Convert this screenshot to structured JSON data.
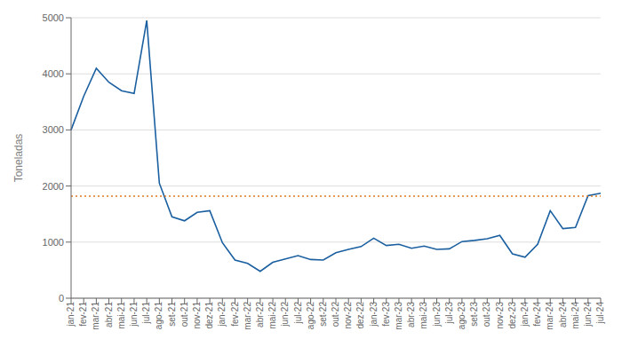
{
  "chart_data": {
    "type": "line",
    "ylabel": "Toneladas",
    "categories": [
      "jan-21",
      "fev-21",
      "mar-21",
      "abr-21",
      "mai-21",
      "jun-21",
      "jul-21",
      "ago-21",
      "set-21",
      "out-21",
      "nov-21",
      "dez-21",
      "jan-22",
      "fev-22",
      "mar-22",
      "abr-22",
      "mai-22",
      "jun-22",
      "jul-22",
      "ago-22",
      "set-22",
      "out-22",
      "nov-22",
      "dez-22",
      "jan-23",
      "fev-23",
      "mar-23",
      "abr-23",
      "mai-23",
      "jun-23",
      "jul-23",
      "ago-23",
      "set-23",
      "out-23",
      "nov-23",
      "dez-23",
      "jan-24",
      "fev-24",
      "mar-24",
      "abr-24",
      "mai-24",
      "jun-24",
      "jul-24"
    ],
    "values": [
      3000,
      3600,
      4100,
      3850,
      3700,
      3650,
      4950,
      2050,
      1450,
      1380,
      1530,
      1560,
      990,
      680,
      620,
      480,
      640,
      700,
      760,
      690,
      680,
      810,
      870,
      920,
      1070,
      940,
      960,
      890,
      930,
      870,
      880,
      1010,
      1030,
      1060,
      1120,
      790,
      730,
      960,
      1560,
      1240,
      1260,
      1830,
      1870
    ],
    "color": "#1a5fa0",
    "reference_line": {
      "value": 1820,
      "color": "#e07820",
      "line_style": "dotted"
    },
    "ylim": [
      0,
      5000
    ],
    "yticks": [
      0,
      1000,
      2000,
      3000,
      4000,
      5000
    ],
    "grid": true
  }
}
